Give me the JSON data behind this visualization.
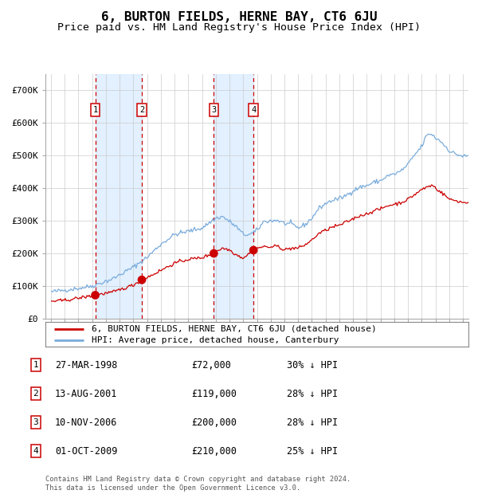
{
  "title": "6, BURTON FIELDS, HERNE BAY, CT6 6JU",
  "subtitle": "Price paid vs. HM Land Registry's House Price Index (HPI)",
  "title_fontsize": 11.5,
  "subtitle_fontsize": 9.5,
  "background_color": "#ffffff",
  "plot_bg_color": "#ffffff",
  "grid_color": "#cccccc",
  "sale_dates_dec": [
    1998.23,
    2001.62,
    2006.86,
    2009.75
  ],
  "sale_prices": [
    72000,
    119000,
    200000,
    210000
  ],
  "sale_labels": [
    "1",
    "2",
    "3",
    "4"
  ],
  "sale_color": "#cc0000",
  "hpi_color": "#7aacdc",
  "red_line_color": "#cc0000",
  "vline_color_sale": "#cc0000",
  "shade_color": "#ddeeff",
  "legend_entries": [
    "6, BURTON FIELDS, HERNE BAY, CT6 6JU (detached house)",
    "HPI: Average price, detached house, Canterbury"
  ],
  "table_rows": [
    [
      "1",
      "27-MAR-1998",
      "£72,000",
      "30% ↓ HPI"
    ],
    [
      "2",
      "13-AUG-2001",
      "£119,000",
      "28% ↓ HPI"
    ],
    [
      "3",
      "10-NOV-2006",
      "£200,000",
      "28% ↓ HPI"
    ],
    [
      "4",
      "01-OCT-2009",
      "£210,000",
      "25% ↓ HPI"
    ]
  ],
  "footer": "Contains HM Land Registry data © Crown copyright and database right 2024.\nThis data is licensed under the Open Government Licence v3.0.",
  "ylim": [
    0,
    750000
  ],
  "yticks": [
    0,
    100000,
    200000,
    300000,
    400000,
    500000,
    600000,
    700000
  ],
  "ytick_labels": [
    "£0",
    "£100K",
    "£200K",
    "£300K",
    "£400K",
    "£500K",
    "£600K",
    "£700K"
  ],
  "xstart_year": 1995,
  "xend_year": 2025,
  "hpi_keypoints_x": [
    1995.0,
    1997.0,
    1998.0,
    1999.5,
    2001.0,
    2002.0,
    2003.0,
    2004.0,
    2005.0,
    2006.0,
    2007.0,
    2007.5,
    2008.0,
    2008.5,
    2009.0,
    2009.5,
    2010.0,
    2010.5,
    2011.0,
    2011.5,
    2012.0,
    2012.5,
    2013.0,
    2013.5,
    2014.0,
    2014.5,
    2015.0,
    2015.5,
    2016.0,
    2016.5,
    2017.0,
    2017.5,
    2018.0,
    2018.5,
    2019.0,
    2019.5,
    2020.0,
    2020.5,
    2021.0,
    2021.5,
    2022.0,
    2022.3,
    2022.6,
    2022.8,
    2023.0,
    2023.3,
    2023.6,
    2023.9,
    2024.0,
    2024.3,
    2024.6,
    2025.0
  ],
  "hpi_keypoints_y": [
    82000,
    93000,
    100000,
    122000,
    158000,
    188000,
    228000,
    258000,
    268000,
    278000,
    308000,
    313000,
    298000,
    282000,
    258000,
    258000,
    270000,
    298000,
    300000,
    302000,
    292000,
    290000,
    278000,
    288000,
    308000,
    338000,
    353000,
    363000,
    368000,
    378000,
    393000,
    403000,
    408000,
    418000,
    423000,
    438000,
    443000,
    453000,
    473000,
    503000,
    528000,
    558000,
    568000,
    563000,
    553000,
    548000,
    533000,
    523000,
    513000,
    508000,
    503000,
    498000
  ],
  "red_keypoints_x": [
    1995.0,
    1996.0,
    1997.0,
    1998.23,
    1999.0,
    1999.5,
    2001.0,
    2001.62,
    2002.0,
    2003.0,
    2004.0,
    2005.0,
    2006.0,
    2006.86,
    2007.0,
    2007.5,
    2008.0,
    2008.5,
    2009.0,
    2009.75,
    2010.0,
    2010.5,
    2011.0,
    2011.5,
    2012.0,
    2012.5,
    2013.0,
    2013.5,
    2014.0,
    2014.5,
    2015.0,
    2015.5,
    2016.0,
    2016.5,
    2017.0,
    2017.5,
    2018.0,
    2018.5,
    2019.0,
    2019.5,
    2020.0,
    2020.5,
    2021.0,
    2021.5,
    2022.0,
    2022.5,
    2022.8,
    2023.0,
    2023.3,
    2023.6,
    2023.9,
    2024.0,
    2024.6,
    2025.0
  ],
  "red_keypoints_y": [
    53000,
    56000,
    63000,
    72000,
    78000,
    81000,
    103000,
    119000,
    126000,
    148000,
    170000,
    182000,
    187000,
    200000,
    206000,
    216000,
    211000,
    196000,
    186000,
    210000,
    216000,
    221000,
    219000,
    223000,
    211000,
    216000,
    216000,
    226000,
    241000,
    261000,
    271000,
    281000,
    286000,
    296000,
    306000,
    316000,
    321000,
    331000,
    336000,
    346000,
    351000,
    356000,
    366000,
    381000,
    396000,
    406000,
    409000,
    401000,
    391000,
    381000,
    371000,
    366000,
    361000,
    356000
  ]
}
